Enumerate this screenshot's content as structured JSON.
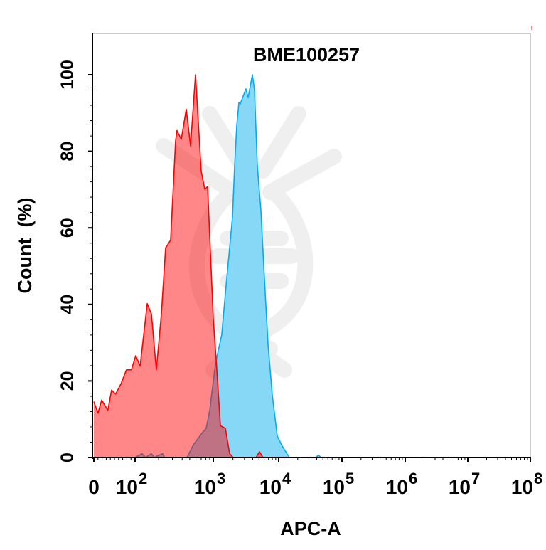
{
  "chart_data": {
    "type": "area",
    "title": "BME100257",
    "xlabel": "APC-A",
    "ylabel": "Count  (%)",
    "corner_mark": "!",
    "x_scale": "biexponential",
    "xlim": [
      0,
      100000000
    ],
    "ylim": [
      0,
      100
    ],
    "grid": false,
    "legend": "none",
    "x_ticks": [
      {
        "value": 0,
        "base": "0",
        "exp": ""
      },
      {
        "value": 100,
        "base": "10",
        "exp": "2"
      },
      {
        "value": 1000,
        "base": "10",
        "exp": "3"
      },
      {
        "value": 10000,
        "base": "10",
        "exp": "4"
      },
      {
        "value": 100000,
        "base": "10",
        "exp": "5"
      },
      {
        "value": 1000000,
        "base": "10",
        "exp": "6"
      },
      {
        "value": 10000000,
        "base": "10",
        "exp": "7"
      },
      {
        "value": 100000000,
        "base": "10",
        "exp": "8"
      }
    ],
    "y_ticks": [
      "0",
      "20",
      "40",
      "60",
      "80",
      "100"
    ],
    "series": [
      {
        "color": "#00aeef",
        "fill": "#87d8f7",
        "points": [
          [
            100,
            0
          ],
          [
            123,
            1
          ],
          [
            136,
            0
          ],
          [
            162,
            1
          ],
          [
            175,
            0
          ],
          [
            225,
            1
          ],
          [
            240,
            0
          ],
          [
            461,
            0
          ],
          [
            556,
            3.3
          ],
          [
            731,
            6.6
          ],
          [
            811,
            7.6
          ],
          [
            901,
            12.3
          ],
          [
            1051,
            22.9
          ],
          [
            1133,
            26.2
          ],
          [
            1350,
            32.2
          ],
          [
            1530,
            42.9
          ],
          [
            1735,
            52.8
          ],
          [
            1965,
            62.8
          ],
          [
            2117,
            76.1
          ],
          [
            2283,
            86.7
          ],
          [
            2462,
            92.7
          ],
          [
            2590,
            92.4
          ],
          [
            2864,
            94.4
          ],
          [
            3162,
            96.3
          ],
          [
            3412,
            94
          ],
          [
            3767,
            98
          ],
          [
            3963,
            100
          ],
          [
            4268,
            96
          ],
          [
            4720,
            76
          ],
          [
            5350,
            64.5
          ],
          [
            6070,
            46.2
          ],
          [
            6870,
            29.6
          ],
          [
            7980,
            16.3
          ],
          [
            9500,
            5.6
          ],
          [
            11380,
            3
          ],
          [
            14760,
            0
          ],
          [
            38000,
            0
          ],
          [
            42700,
            0.6
          ],
          [
            47000,
            0
          ]
        ]
      },
      {
        "color": "#ff0000",
        "fill": "#ff0000",
        "points": [
          [
            0,
            14.6
          ],
          [
            10,
            11.6
          ],
          [
            19,
            15
          ],
          [
            34,
            12.3
          ],
          [
            43,
            17.6
          ],
          [
            53,
            16.6
          ],
          [
            66,
            19.3
          ],
          [
            79,
            22.9
          ],
          [
            91,
            22.9
          ],
          [
            102,
            26.6
          ],
          [
            116,
            23.9
          ],
          [
            143,
            40.2
          ],
          [
            162,
            37.5
          ],
          [
            187,
            22.9
          ],
          [
            217,
            37.5
          ],
          [
            246,
            54.8
          ],
          [
            285,
            56.8
          ],
          [
            330,
            82.7
          ],
          [
            343,
            85.4
          ],
          [
            390,
            83.1
          ],
          [
            451,
            91
          ],
          [
            512,
            81.4
          ],
          [
            593,
            100
          ],
          [
            700,
            74.8
          ],
          [
            778,
            70.1
          ],
          [
            846,
            70.8
          ],
          [
            1000,
            36.2
          ],
          [
            1133,
            22.9
          ],
          [
            1284,
            8.3
          ],
          [
            1530,
            7.6
          ],
          [
            1778,
            1
          ],
          [
            2015,
            0
          ],
          [
            4487,
            0
          ],
          [
            5090,
            1.5
          ],
          [
            5760,
            0
          ]
        ]
      }
    ]
  }
}
